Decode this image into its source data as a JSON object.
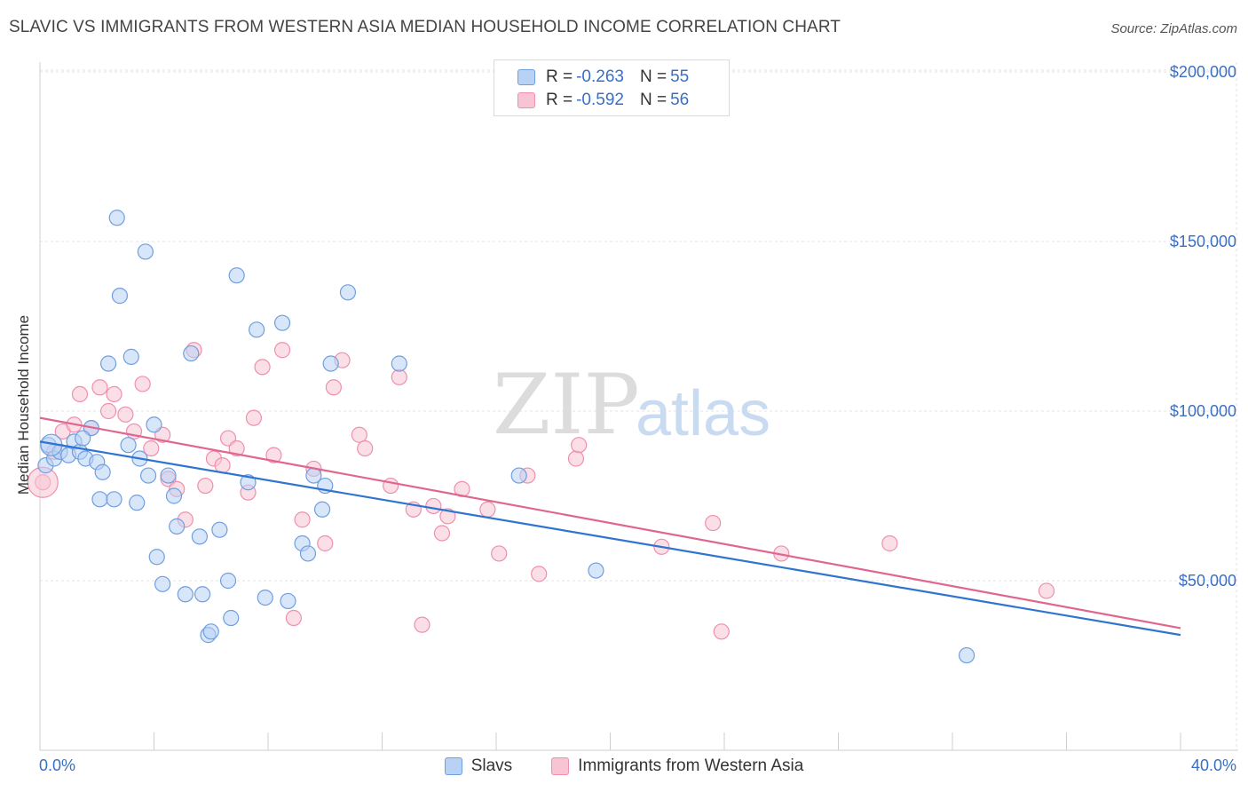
{
  "header": {
    "title": "SLAVIC VS IMMIGRANTS FROM WESTERN ASIA MEDIAN HOUSEHOLD INCOME CORRELATION CHART",
    "source": "Source: ZipAtlas.com"
  },
  "watermark": {
    "zip": "ZIP",
    "atlas": "atlas"
  },
  "legend": {
    "r_label": "R =",
    "n_label": "N =",
    "rows": [
      {
        "r": "-0.263",
        "n": "55"
      },
      {
        "r": "-0.592",
        "n": "56"
      }
    ]
  },
  "chart_data": {
    "type": "scatter",
    "title": "SLAVIC VS IMMIGRANTS FROM WESTERN ASIA MEDIAN HOUSEHOLD INCOME CORRELATION CHART",
    "xlabel": "",
    "ylabel": "Median Household Income",
    "xlim": [
      0,
      40
    ],
    "ylim": [
      0,
      210000
    ],
    "x_tick_labels": [
      "0.0%",
      "40.0%"
    ],
    "y_ticks": [
      {
        "value": 50000,
        "label": "$50,000"
      },
      {
        "value": 100000,
        "label": "$100,000"
      },
      {
        "value": 150000,
        "label": "$150,000"
      },
      {
        "value": 200000,
        "label": "$200,000"
      }
    ],
    "grid": true,
    "legend_placement": "top-center",
    "colors": {
      "slavs_fill": "#b8d1f5",
      "slavs_stroke": "#6f9fe0",
      "slavs_line": "#2f74d0",
      "wa_fill": "#f8c4d4",
      "wa_stroke": "#ef8fae",
      "wa_line": "#e0668f"
    },
    "series": [
      {
        "name": "Slavs",
        "trend": [
          [
            0,
            91000
          ],
          [
            40,
            34000
          ]
        ],
        "points": [
          [
            0.2,
            84000
          ],
          [
            0.3,
            90000
          ],
          [
            0.5,
            86000
          ],
          [
            0.7,
            88000
          ],
          [
            1.0,
            87000
          ],
          [
            1.2,
            91000
          ],
          [
            1.4,
            88000
          ],
          [
            1.6,
            86000
          ],
          [
            1.8,
            95000
          ],
          [
            2.0,
            85000
          ],
          [
            2.1,
            74000
          ],
          [
            2.2,
            82000
          ],
          [
            2.4,
            114000
          ],
          [
            2.6,
            74000
          ],
          [
            2.7,
            157000
          ],
          [
            2.8,
            134000
          ],
          [
            3.1,
            90000
          ],
          [
            3.2,
            116000
          ],
          [
            3.4,
            73000
          ],
          [
            3.5,
            86000
          ],
          [
            3.7,
            147000
          ],
          [
            3.8,
            81000
          ],
          [
            4.0,
            96000
          ],
          [
            4.1,
            57000
          ],
          [
            4.3,
            49000
          ],
          [
            4.5,
            81000
          ],
          [
            4.7,
            75000
          ],
          [
            4.8,
            66000
          ],
          [
            5.1,
            46000
          ],
          [
            5.3,
            117000
          ],
          [
            5.6,
            63000
          ],
          [
            5.7,
            46000
          ],
          [
            5.9,
            34000
          ],
          [
            6.0,
            35000
          ],
          [
            6.3,
            65000
          ],
          [
            6.6,
            50000
          ],
          [
            6.7,
            39000
          ],
          [
            6.9,
            140000
          ],
          [
            7.3,
            79000
          ],
          [
            7.6,
            124000
          ],
          [
            7.9,
            45000
          ],
          [
            8.5,
            126000
          ],
          [
            8.7,
            44000
          ],
          [
            9.2,
            61000
          ],
          [
            9.4,
            58000
          ],
          [
            9.6,
            81000
          ],
          [
            9.9,
            71000
          ],
          [
            10.0,
            78000
          ],
          [
            10.2,
            114000
          ],
          [
            10.8,
            135000
          ],
          [
            12.6,
            114000
          ],
          [
            16.8,
            81000
          ],
          [
            19.5,
            53000
          ],
          [
            32.5,
            28000
          ],
          [
            1.5,
            92000
          ]
        ]
      },
      {
        "name": "Immigrants from Western Asia",
        "trend": [
          [
            0,
            98000
          ],
          [
            40,
            36000
          ]
        ],
        "points": [
          [
            0.1,
            79000
          ],
          [
            0.5,
            88000
          ],
          [
            0.8,
            94000
          ],
          [
            1.2,
            96000
          ],
          [
            1.4,
            105000
          ],
          [
            1.8,
            95000
          ],
          [
            2.1,
            107000
          ],
          [
            2.4,
            100000
          ],
          [
            2.6,
            105000
          ],
          [
            3.0,
            99000
          ],
          [
            3.3,
            94000
          ],
          [
            3.6,
            108000
          ],
          [
            3.9,
            89000
          ],
          [
            4.3,
            93000
          ],
          [
            4.5,
            80000
          ],
          [
            4.8,
            77000
          ],
          [
            5.1,
            68000
          ],
          [
            5.4,
            118000
          ],
          [
            5.8,
            78000
          ],
          [
            6.1,
            86000
          ],
          [
            6.4,
            84000
          ],
          [
            6.6,
            92000
          ],
          [
            6.9,
            89000
          ],
          [
            7.3,
            76000
          ],
          [
            7.5,
            98000
          ],
          [
            7.8,
            113000
          ],
          [
            8.2,
            87000
          ],
          [
            8.5,
            118000
          ],
          [
            8.9,
            39000
          ],
          [
            9.2,
            68000
          ],
          [
            9.6,
            83000
          ],
          [
            10.0,
            61000
          ],
          [
            10.3,
            107000
          ],
          [
            10.6,
            115000
          ],
          [
            11.2,
            93000
          ],
          [
            11.4,
            89000
          ],
          [
            12.3,
            78000
          ],
          [
            12.6,
            110000
          ],
          [
            13.1,
            71000
          ],
          [
            13.4,
            37000
          ],
          [
            13.8,
            72000
          ],
          [
            14.1,
            64000
          ],
          [
            14.3,
            69000
          ],
          [
            14.8,
            77000
          ],
          [
            15.7,
            71000
          ],
          [
            16.1,
            58000
          ],
          [
            17.1,
            81000
          ],
          [
            17.5,
            52000
          ],
          [
            18.8,
            86000
          ],
          [
            18.9,
            90000
          ],
          [
            21.8,
            60000
          ],
          [
            23.6,
            67000
          ],
          [
            23.9,
            35000
          ],
          [
            26.0,
            58000
          ],
          [
            29.8,
            61000
          ],
          [
            35.3,
            47000
          ]
        ]
      }
    ]
  },
  "bottom_legend": [
    {
      "label": "Slavs"
    },
    {
      "label": "Immigrants from Western Asia"
    }
  ]
}
